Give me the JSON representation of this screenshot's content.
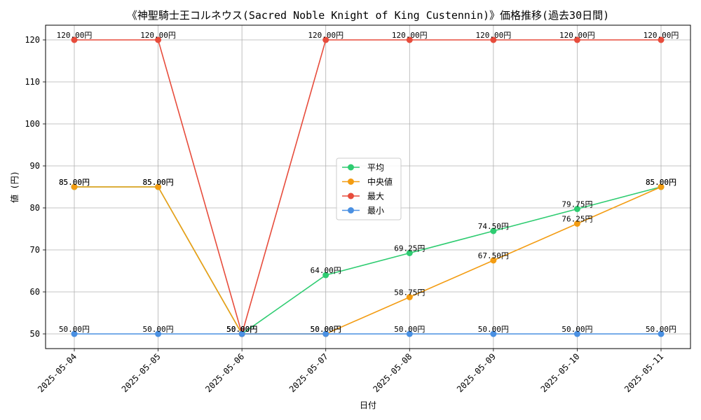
{
  "chart_data": {
    "type": "line",
    "title": "《神聖騎士王コルネウス(Sacred Noble Knight of King Custennin)》価格推移(過去30日間)",
    "xlabel": "日付",
    "ylabel": "値 (円)",
    "categories": [
      "2025-05-04",
      "2025-05-05",
      "2025-05-06",
      "2025-05-07",
      "2025-05-08",
      "2025-05-09",
      "2025-05-10",
      "2025-05-11"
    ],
    "ylim": [
      46.5,
      123.5
    ],
    "yticks": [
      50,
      60,
      70,
      80,
      90,
      100,
      110,
      120
    ],
    "grid": true,
    "legend_position": "center",
    "series": [
      {
        "name": "平均",
        "color": "#2ecc71",
        "values": [
          85,
          85,
          50,
          64,
          69.25,
          74.5,
          79.75,
          85
        ],
        "labels": [
          "85.00円",
          "85.00円",
          "50.00円",
          "64.00円",
          "69.25円",
          "74.50円",
          "79.75円",
          "85.00円"
        ]
      },
      {
        "name": "中央値",
        "color": "#f39c12",
        "values": [
          85,
          85,
          50,
          50,
          58.75,
          67.5,
          76.25,
          85
        ],
        "labels": [
          "85.00円",
          "85.00円",
          "50.00円",
          "50.00円",
          "58.75円",
          "67.50円",
          "76.25円",
          "85.00円"
        ]
      },
      {
        "name": "最大",
        "color": "#e74c3c",
        "values": [
          120,
          120,
          50,
          120,
          120,
          120,
          120,
          120
        ],
        "labels": [
          "120.00円",
          "120.00円",
          "50.00円",
          "120.00円",
          "120.00円",
          "120.00円",
          "120.00円",
          "120.00円"
        ]
      },
      {
        "name": "最小",
        "color": "#4a90e2",
        "values": [
          50,
          50,
          50,
          50,
          50,
          50,
          50,
          50
        ],
        "labels": [
          "50.00円",
          "50.00円",
          "50.00円",
          "50.00円",
          "50.00円",
          "50.00円",
          "50.00円",
          "50.00円"
        ]
      }
    ]
  }
}
